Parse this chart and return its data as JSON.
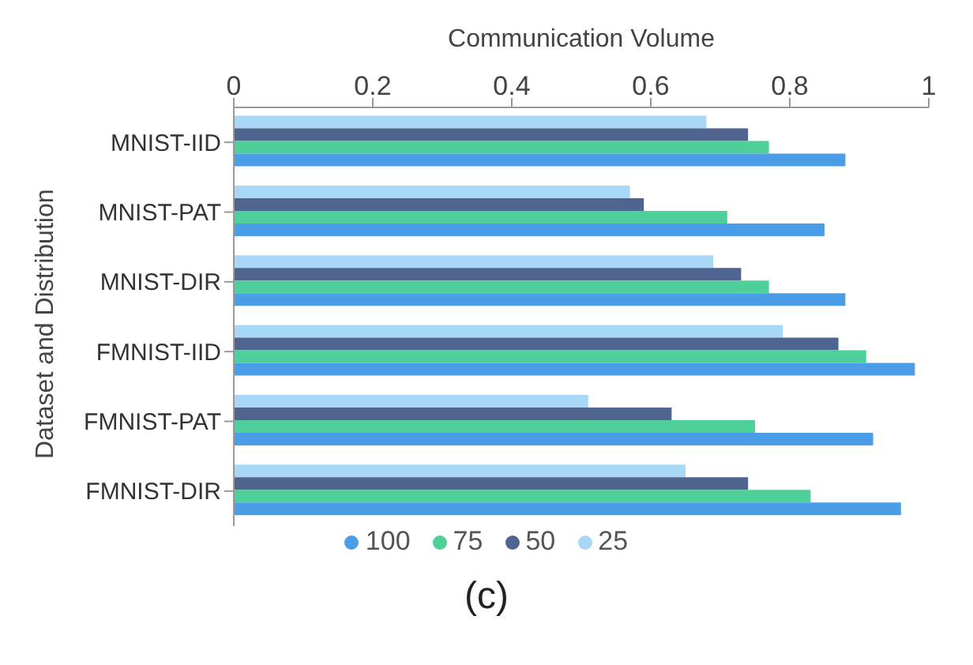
{
  "chart_data": {
    "type": "bar",
    "orientation": "horizontal",
    "xlabel": "Communication Volume",
    "ylabel": "Dataset and Distribution",
    "categories": [
      "MNIST-IID",
      "MNIST-PAT",
      "MNIST-DIR",
      "FMNIST-IID",
      "FMNIST-PAT",
      "FMNIST-DIR"
    ],
    "series": [
      {
        "name": "100",
        "color": "#4a9ee8",
        "values": [
          0.88,
          0.85,
          0.88,
          0.98,
          0.92,
          0.96
        ]
      },
      {
        "name": "75",
        "color": "#4fcf9a",
        "values": [
          0.77,
          0.71,
          0.77,
          0.91,
          0.75,
          0.83
        ]
      },
      {
        "name": "50",
        "color": "#4f6590",
        "values": [
          0.74,
          0.59,
          0.73,
          0.87,
          0.63,
          0.74
        ]
      },
      {
        "name": "25",
        "color": "#a8d8f5",
        "values": [
          0.68,
          0.57,
          0.69,
          0.79,
          0.51,
          0.65
        ]
      }
    ],
    "xlim": [
      0,
      1
    ],
    "xticks": [
      0,
      0.2,
      0.4,
      0.6,
      0.8,
      1
    ],
    "legend": "bottom",
    "annotations": [
      "(c)"
    ]
  }
}
